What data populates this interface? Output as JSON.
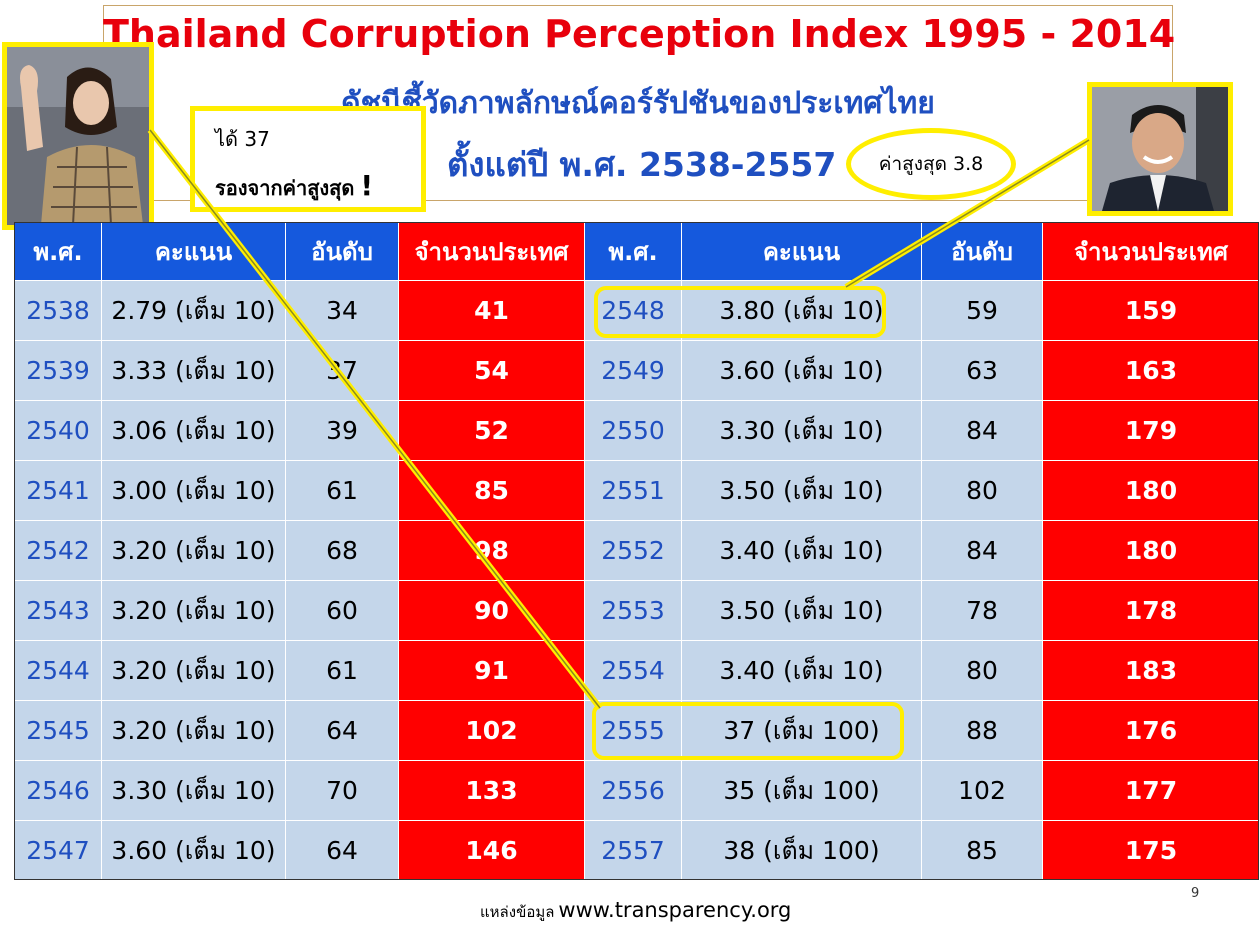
{
  "title": {
    "en": "Thailand Corruption Perception Index 1995 - 2014",
    "th_line1": "ดัชนีชี้วัดภาพลักษณ์คอร์รัปชันของประเทศไทย",
    "th_line2": "ตั้งแต่ปี พ.ศ. 2538-2557"
  },
  "callouts": {
    "left_line1": "ได้ 37",
    "left_line2": "รองจากค่าสูงสุด",
    "left_bang": "!",
    "right": "ค่าสูงสุด 3.8"
  },
  "table": {
    "headers": [
      "พ.ศ.",
      "คะแนน",
      "อันดับ",
      "จำนวนประเทศ",
      "พ.ศ.",
      "คะแนน",
      "อันดับ",
      "จำนวนประเทศ"
    ],
    "left_rows": [
      {
        "year": "2538",
        "score": "2.79 (เต็ม 10)",
        "rank": "34",
        "countries": "41"
      },
      {
        "year": "2539",
        "score": "3.33 (เต็ม 10)",
        "rank": "37",
        "countries": "54"
      },
      {
        "year": "2540",
        "score": "3.06 (เต็ม 10)",
        "rank": "39",
        "countries": "52"
      },
      {
        "year": "2541",
        "score": "3.00 (เต็ม 10)",
        "rank": "61",
        "countries": "85"
      },
      {
        "year": "2542",
        "score": "3.20 (เต็ม 10)",
        "rank": "68",
        "countries": "98"
      },
      {
        "year": "2543",
        "score": "3.20 (เต็ม 10)",
        "rank": "60",
        "countries": "90"
      },
      {
        "year": "2544",
        "score": "3.20 (เต็ม 10)",
        "rank": "61",
        "countries": "91"
      },
      {
        "year": "2545",
        "score": "3.20 (เต็ม 10)",
        "rank": "64",
        "countries": "102"
      },
      {
        "year": "2546",
        "score": "3.30 (เต็ม 10)",
        "rank": "70",
        "countries": "133"
      },
      {
        "year": "2547",
        "score": "3.60 (เต็ม 10)",
        "rank": "64",
        "countries": "146"
      }
    ],
    "right_rows": [
      {
        "year": "2548",
        "score": "3.80 (เต็ม 10)",
        "rank": "59",
        "countries": "159"
      },
      {
        "year": "2549",
        "score": "3.60 (เต็ม 10)",
        "rank": "63",
        "countries": "163"
      },
      {
        "year": "2550",
        "score": "3.30 (เต็ม 10)",
        "rank": "84",
        "countries": "179"
      },
      {
        "year": "2551",
        "score": "3.50 (เต็ม 10)",
        "rank": "80",
        "countries": "180"
      },
      {
        "year": "2552",
        "score": "3.40 (เต็ม 10)",
        "rank": "84",
        "countries": "180"
      },
      {
        "year": "2553",
        "score": "3.50 (เต็ม 10)",
        "rank": "78",
        "countries": "178"
      },
      {
        "year": "2554",
        "score": "3.40 (เต็ม 10)",
        "rank": "80",
        "countries": "183"
      },
      {
        "year": "2555",
        "score": "37 (เต็ม 100)",
        "rank": "88",
        "countries": "176"
      },
      {
        "year": "2556",
        "score": "35 (เต็ม 100)",
        "rank": "102",
        "countries": "177"
      },
      {
        "year": "2557",
        "score": "38 (เต็ม 100)",
        "rank": "85",
        "countries": "175"
      }
    ]
  },
  "source": {
    "label": "แหล่งข้อมูล",
    "url": "www.transparency.org"
  },
  "page_number": "9",
  "colors": {
    "title_red": "#e8000c",
    "title_blue": "#1f4fc0",
    "header_blue": "#1559dd",
    "header_red": "#ff0000",
    "cell_gray_blue": "#c4d6ea",
    "highlight_yellow": "#ffee00"
  }
}
